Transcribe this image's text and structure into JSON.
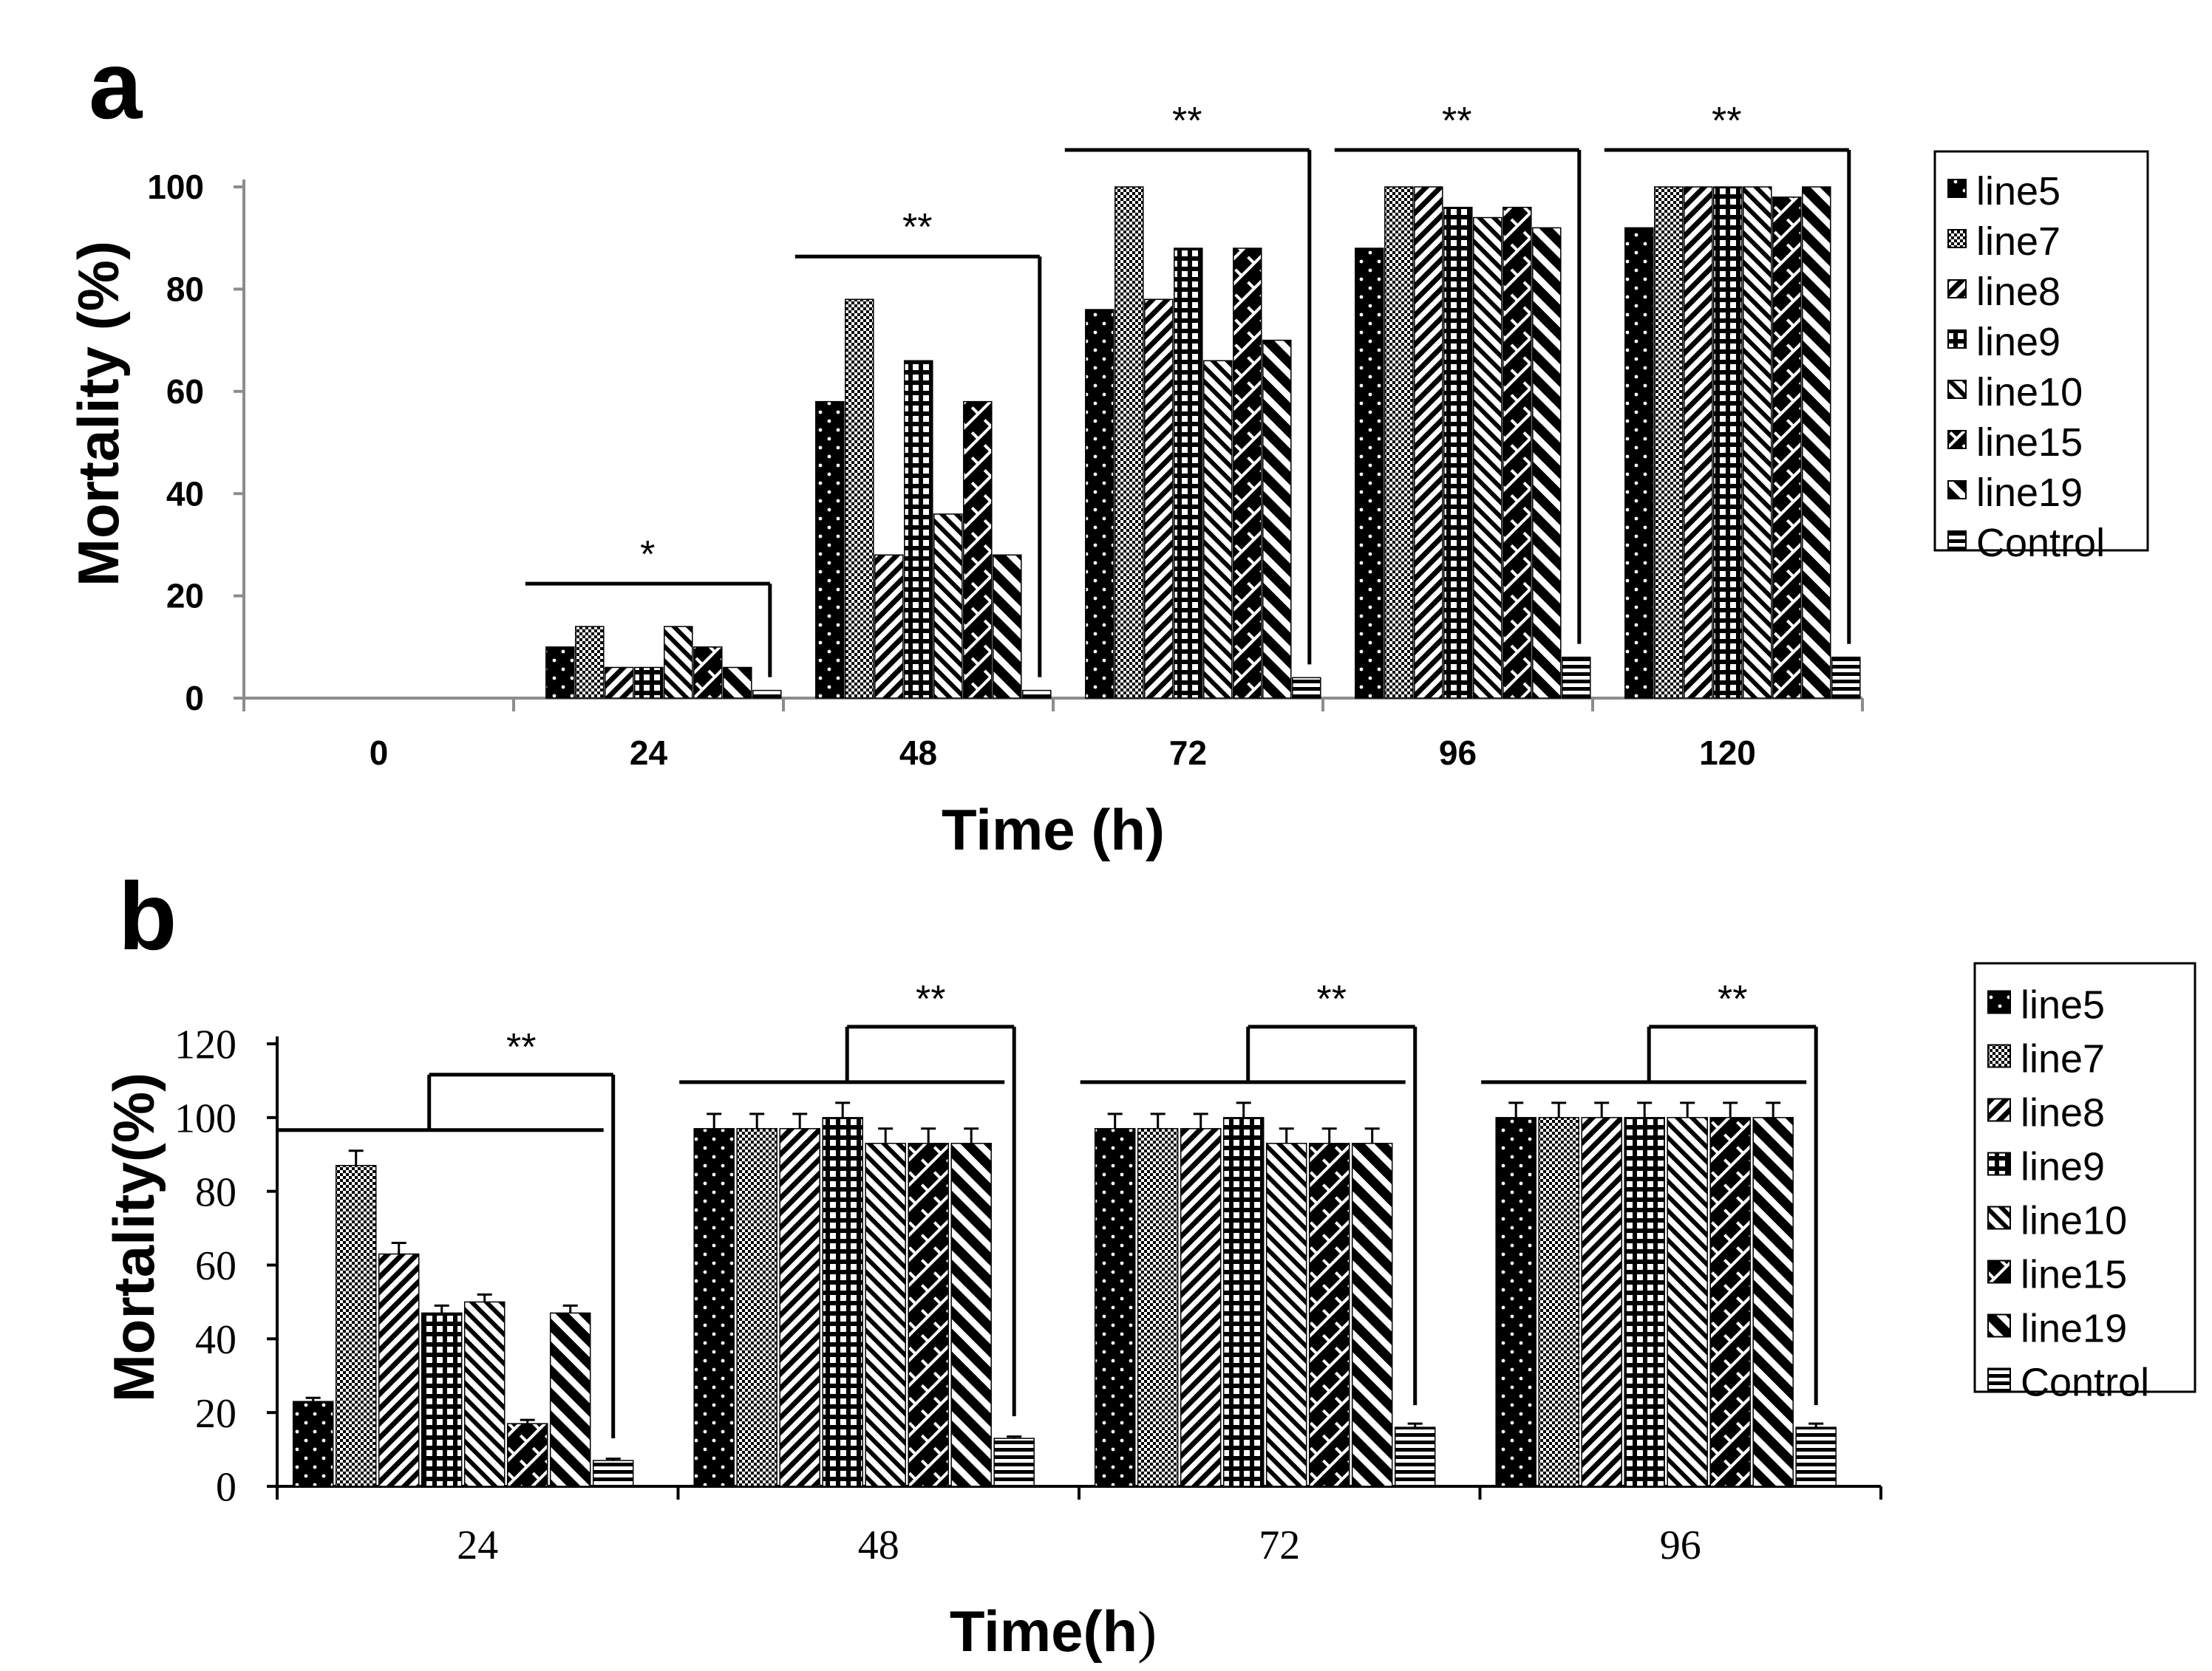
{
  "colors": {
    "ink": "#000000",
    "paper": "#ffffff",
    "axis": "#8c8c8c"
  },
  "chart_data": [
    {
      "type": "bar",
      "panel_label": "a",
      "ylabel": "Mortality (%)",
      "xlabel": "Time (h)",
      "ylim": [
        0,
        100
      ],
      "yticks": [
        "0",
        "20",
        "40",
        "60",
        "80",
        "100"
      ],
      "categories": [
        "0",
        "24",
        "48",
        "72",
        "96",
        "120"
      ],
      "legend_position": "right",
      "series": [
        {
          "name": "line5",
          "pattern": "dots",
          "values": [
            0,
            10,
            58,
            76,
            88,
            92
          ]
        },
        {
          "name": "line7",
          "pattern": "checker",
          "values": [
            0,
            14,
            78,
            100,
            100,
            100
          ]
        },
        {
          "name": "line8",
          "pattern": "diag-left",
          "values": [
            0,
            6,
            28,
            78,
            100,
            100
          ]
        },
        {
          "name": "line9",
          "pattern": "grid",
          "values": [
            0,
            6,
            66,
            88,
            96,
            100
          ]
        },
        {
          "name": "line10",
          "pattern": "diag-right",
          "values": [
            0,
            14,
            36,
            66,
            94,
            100
          ]
        },
        {
          "name": "line15",
          "pattern": "zigzag",
          "values": [
            0,
            10,
            58,
            88,
            96,
            98
          ]
        },
        {
          "name": "line19",
          "pattern": "diag-bold",
          "values": [
            0,
            6,
            28,
            70,
            92,
            100
          ]
        },
        {
          "name": "Control",
          "pattern": "hstripes",
          "values": [
            0,
            1.5,
            1.5,
            4,
            8,
            8
          ]
        }
      ],
      "significance": [
        {
          "label": "*",
          "group": "24"
        },
        {
          "label": "**",
          "group": "48"
        },
        {
          "label": "**",
          "group": "72"
        },
        {
          "label": "**",
          "group": "96"
        },
        {
          "label": "**",
          "group": "120"
        }
      ]
    },
    {
      "type": "bar",
      "panel_label": "b",
      "ylabel": "Mortality(%)",
      "xlabel_main": "Time(h",
      "xlabel_paren": ")",
      "ylim": [
        0,
        120
      ],
      "yticks": [
        "0",
        "20",
        "40",
        "60",
        "80",
        "100",
        "120"
      ],
      "categories": [
        "24",
        "48",
        "72",
        "96"
      ],
      "legend_position": "right",
      "series": [
        {
          "name": "line5",
          "pattern": "dots",
          "values": [
            23,
            97,
            97,
            100
          ],
          "errors": [
            1,
            4,
            4,
            4
          ]
        },
        {
          "name": "line7",
          "pattern": "checker",
          "values": [
            87,
            97,
            97,
            100
          ],
          "errors": [
            4,
            4,
            4,
            4
          ]
        },
        {
          "name": "line8",
          "pattern": "diag-left",
          "values": [
            63,
            97,
            97,
            100
          ],
          "errors": [
            3,
            4,
            4,
            4
          ]
        },
        {
          "name": "line9",
          "pattern": "grid",
          "values": [
            47,
            100,
            100,
            100
          ],
          "errors": [
            2,
            4,
            4,
            4
          ]
        },
        {
          "name": "line10",
          "pattern": "diag-right",
          "values": [
            50,
            93,
            93,
            100
          ],
          "errors": [
            2,
            4,
            4,
            4
          ]
        },
        {
          "name": "line15",
          "pattern": "zigzag",
          "values": [
            17,
            93,
            93,
            100
          ],
          "errors": [
            1,
            4,
            4,
            4
          ]
        },
        {
          "name": "line19",
          "pattern": "diag-bold",
          "values": [
            47,
            93,
            93,
            100
          ],
          "errors": [
            2,
            4,
            4,
            4
          ]
        },
        {
          "name": "Control",
          "pattern": "hstripes",
          "values": [
            7,
            13,
            16,
            16
          ],
          "errors": [
            0.5,
            0.5,
            1,
            1
          ]
        }
      ],
      "significance": [
        {
          "label": "**",
          "group": "24"
        },
        {
          "label": "**",
          "group": "48"
        },
        {
          "label": "**",
          "group": "72"
        },
        {
          "label": "**",
          "group": "96"
        }
      ]
    }
  ]
}
